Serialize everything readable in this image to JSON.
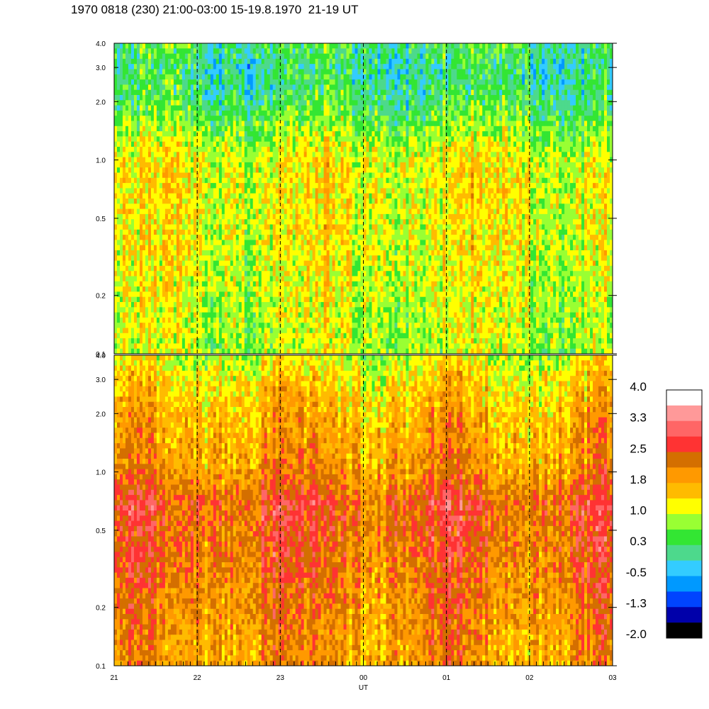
{
  "title": "1970 0818 (230) 21:00-03:00 15-19.8.1970  21-19 UT",
  "chart_data": {
    "type": "heatmap",
    "xlabel": "UT",
    "x_ticks": [
      "21",
      "22",
      "23",
      "00",
      "01",
      "02",
      "03"
    ],
    "x_range_hours": [
      21,
      27
    ],
    "y_ticks": [
      "0.1",
      "0.2",
      "0.5",
      "1.0",
      "2.0",
      "3.0",
      "4.0"
    ],
    "y_tick_values": [
      0.1,
      0.2,
      0.5,
      1.0,
      2.0,
      3.0,
      4.0
    ],
    "y_scale": "log",
    "ylim": [
      0.1,
      4.0
    ],
    "panels": [
      {
        "id": "upper",
        "dominant_level_by_freq": [
          [
            0.1,
            0.9
          ],
          [
            0.5,
            1.2
          ],
          [
            1.0,
            1.2
          ],
          [
            2.0,
            0.3
          ],
          [
            3.0,
            0.1
          ],
          [
            4.0,
            0.3
          ]
        ]
      },
      {
        "id": "lower",
        "dominant_level_by_freq": [
          [
            0.1,
            1.9
          ],
          [
            0.5,
            2.4
          ],
          [
            0.7,
            2.5
          ],
          [
            1.0,
            2.0
          ],
          [
            2.0,
            1.7
          ],
          [
            3.0,
            1.4
          ],
          [
            4.0,
            1.0
          ]
        ]
      }
    ],
    "vertical_dashed_lines_hours": [
      22,
      23,
      24,
      25,
      26
    ],
    "colorbar": {
      "labels": [
        "4.0",
        "3.3",
        "2.5",
        "1.8",
        "1.0",
        "0.3",
        "-0.5",
        "-1.3",
        "-2.0"
      ],
      "colors_top_to_bottom": [
        "#ffffff",
        "#ff9999",
        "#ff6666",
        "#ff3333",
        "#d46f00",
        "#ff9900",
        "#ffbb00",
        "#ffff00",
        "#99ff33",
        "#33e633",
        "#4dd98c",
        "#33ccff",
        "#0099ff",
        "#0044ff",
        "#0000aa",
        "#000000"
      ]
    }
  }
}
